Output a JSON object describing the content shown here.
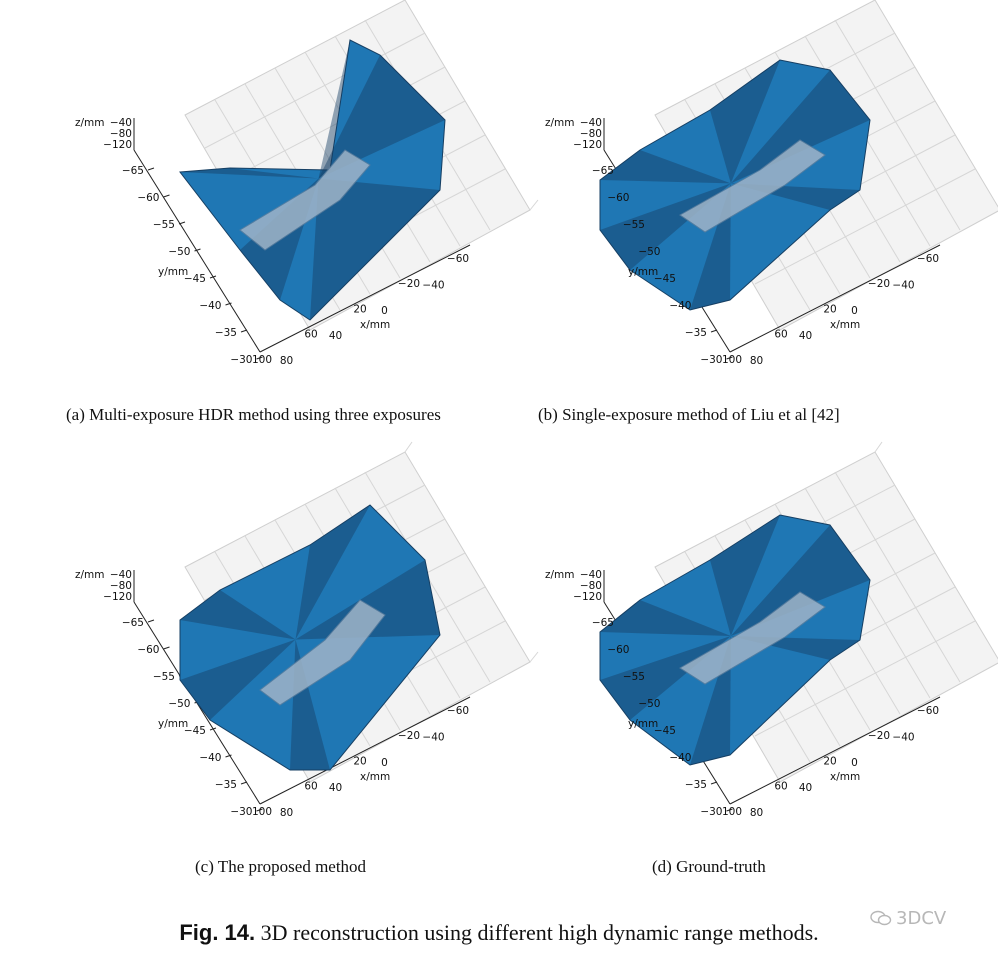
{
  "panels": [
    {
      "id": "a",
      "caption": "(a) Multi-exposure HDR method using three exposures"
    },
    {
      "id": "b",
      "caption": "(b) Single-exposure method of Liu et al [42]"
    },
    {
      "id": "c",
      "caption": "(c) The proposed method"
    },
    {
      "id": "d",
      "caption": "(d) Ground-truth"
    }
  ],
  "axes": {
    "z_label": "z/mm",
    "z_ticks": [
      "−40",
      "−80",
      "−120"
    ],
    "y_label": "y/mm",
    "y_ticks": [
      "−65",
      "−60",
      "−55",
      "−50",
      "−45",
      "−40",
      "−35",
      "−30"
    ],
    "x_label": "x/mm",
    "x_ticks": [
      "−60",
      "−40",
      "−20",
      "0",
      "20",
      "40",
      "60",
      "80",
      "100"
    ]
  },
  "colors": {
    "mesh": "#1f77b4",
    "mesh_dark": "#163f63",
    "grid": "#d9d9d9"
  },
  "figure": {
    "label": "Fig. 14.",
    "text": " 3D reconstruction using different high dynamic range methods."
  },
  "watermark": {
    "text": "3DCV",
    "icon": "wechat-icon"
  }
}
